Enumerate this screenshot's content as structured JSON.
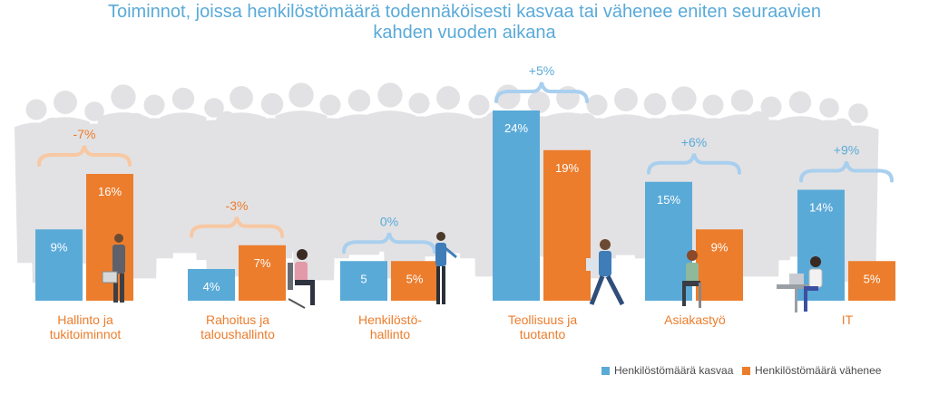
{
  "title_line1": "Toiminnot, joissa henkilöstömäärä todennäköisesti kasvaa tai vähenee eniten seuraavien",
  "title_line2": "kahden vuoden aikana",
  "colors": {
    "increase": "#5aaad8",
    "decrease": "#ec7d2c",
    "brace_blue": "#a9cfee",
    "brace_orange": "#f7c8a2",
    "crowd": "#e2e2e4"
  },
  "legend": {
    "increase": "Henkilöstömäärä kasvaa",
    "decrease": "Henkilöstömäärä vähenee"
  },
  "chart_data": {
    "type": "bar",
    "categories": [
      [
        "Hallinto ja",
        "tukitoiminnot"
      ],
      [
        "Rahoitus ja",
        "taloushallinto"
      ],
      [
        "Henkilöstö-",
        "hallinto"
      ],
      [
        "Teollisuus ja",
        "tuotanto"
      ],
      [
        "Asiakastyö"
      ],
      [
        "IT"
      ]
    ],
    "series": [
      {
        "name": "Henkilöstömäärä kasvaa",
        "values": [
          9,
          4,
          5,
          24,
          15,
          14
        ],
        "labels": [
          "9%",
          "4%",
          "5",
          "24%",
          "15%",
          "14%"
        ]
      },
      {
        "name": "Henkilöstömäärä vähenee",
        "values": [
          16,
          7,
          5,
          19,
          9,
          5
        ],
        "labels": [
          "16%",
          "7%",
          "5%",
          "19%",
          "9%",
          "5%"
        ]
      }
    ],
    "differences": [
      "-7%",
      "-3%",
      "0%",
      "+5%",
      "+6%",
      "+9%"
    ],
    "difference_colors": [
      "orange",
      "orange",
      "blue",
      "blue",
      "blue",
      "blue"
    ],
    "ylim": [
      0,
      24
    ],
    "legend_position": "bottom-right"
  }
}
